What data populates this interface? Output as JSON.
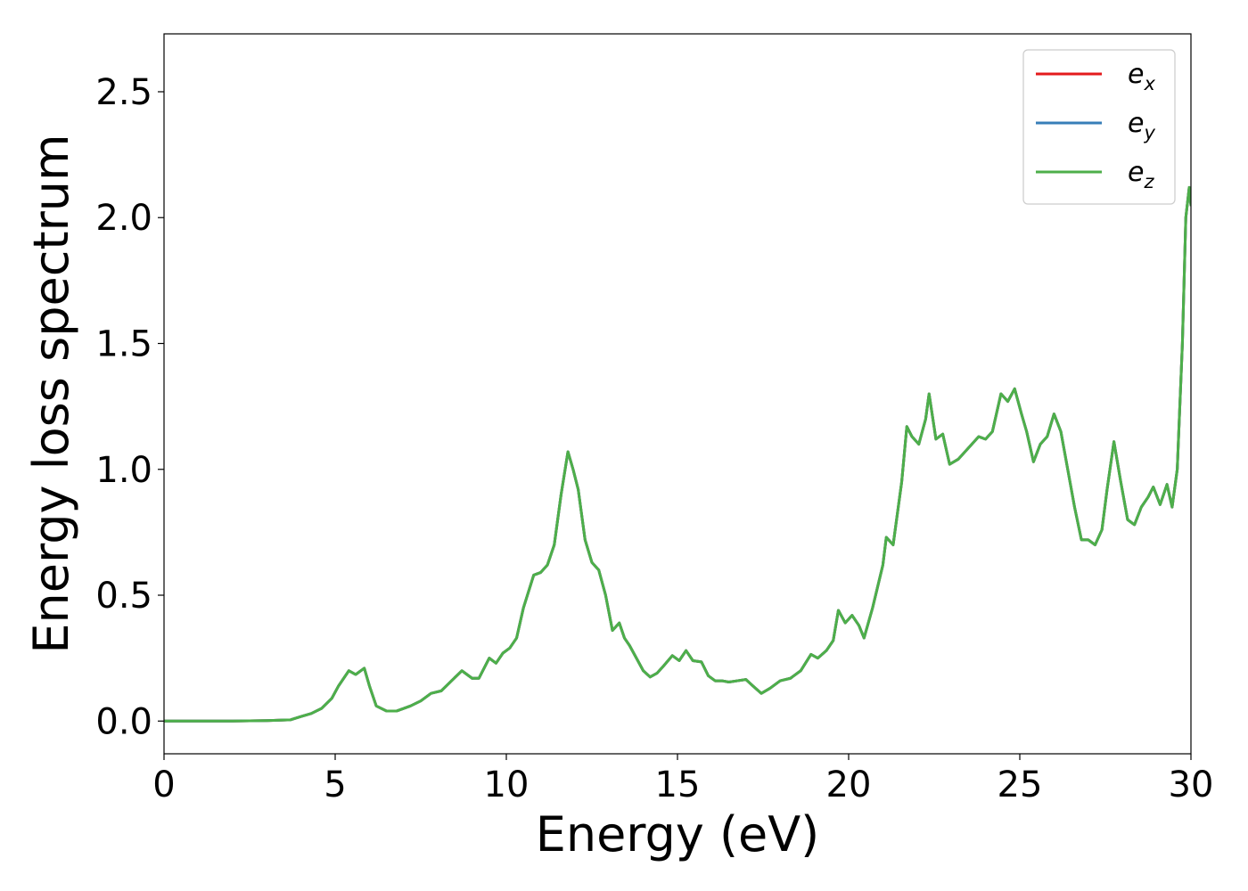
{
  "chart_data": {
    "type": "line",
    "title": "",
    "xlabel": "Energy (eV)",
    "ylabel": "Energy loss spectrum",
    "xlim": [
      0,
      30
    ],
    "ylim": [
      -0.13,
      2.73
    ],
    "x_ticks": [
      "0",
      "5",
      "10",
      "15",
      "20",
      "25",
      "30"
    ],
    "y_ticks": [
      "0.0",
      "0.5",
      "1.0",
      "1.5",
      "2.0",
      "2.5"
    ],
    "grid": false,
    "legend_position": "top-right",
    "x": [
      0,
      2,
      3,
      3.7,
      4.0,
      4.3,
      4.6,
      4.9,
      5.1,
      5.4,
      5.6,
      5.85,
      6.0,
      6.2,
      6.5,
      6.8,
      7.2,
      7.5,
      7.8,
      8.1,
      8.4,
      8.7,
      9.0,
      9.2,
      9.5,
      9.7,
      9.9,
      10.1,
      10.3,
      10.5,
      10.8,
      11.0,
      11.2,
      11.4,
      11.6,
      11.8,
      11.95,
      12.1,
      12.3,
      12.5,
      12.7,
      12.9,
      13.1,
      13.3,
      13.45,
      13.6,
      13.8,
      14.0,
      14.2,
      14.4,
      14.6,
      14.85,
      15.05,
      15.25,
      15.45,
      15.7,
      15.9,
      16.1,
      16.3,
      16.5,
      16.75,
      17.0,
      17.2,
      17.45,
      17.7,
      18.0,
      18.3,
      18.6,
      18.9,
      19.1,
      19.35,
      19.55,
      19.7,
      19.9,
      20.1,
      20.3,
      20.45,
      20.7,
      21.0,
      21.1,
      21.3,
      21.55,
      21.7,
      21.85,
      22.05,
      22.25,
      22.35,
      22.55,
      22.75,
      22.95,
      23.2,
      23.4,
      23.6,
      23.8,
      24.0,
      24.2,
      24.45,
      24.65,
      24.85,
      25.05,
      25.2,
      25.4,
      25.6,
      25.8,
      26.0,
      26.2,
      26.4,
      26.6,
      26.8,
      27.0,
      27.2,
      27.4,
      27.55,
      27.75,
      27.95,
      28.15,
      28.35,
      28.55,
      28.75,
      28.9,
      29.1,
      29.3,
      29.45,
      29.6,
      29.75,
      29.85,
      29.95,
      30.0
    ],
    "series": [
      {
        "name": "e_x",
        "color": "#e41a1c",
        "values": [
          0.0,
          0.0,
          0.002,
          0.005,
          0.018,
          0.03,
          0.05,
          0.09,
          0.14,
          0.2,
          0.185,
          0.21,
          0.14,
          0.06,
          0.04,
          0.04,
          0.06,
          0.08,
          0.11,
          0.12,
          0.16,
          0.2,
          0.17,
          0.17,
          0.25,
          0.23,
          0.27,
          0.29,
          0.33,
          0.45,
          0.58,
          0.59,
          0.62,
          0.7,
          0.9,
          1.07,
          1.0,
          0.92,
          0.72,
          0.63,
          0.6,
          0.5,
          0.36,
          0.39,
          0.33,
          0.3,
          0.25,
          0.2,
          0.175,
          0.19,
          0.22,
          0.26,
          0.24,
          0.28,
          0.24,
          0.235,
          0.18,
          0.16,
          0.16,
          0.155,
          0.16,
          0.165,
          0.14,
          0.11,
          0.13,
          0.16,
          0.17,
          0.2,
          0.265,
          0.25,
          0.28,
          0.32,
          0.44,
          0.39,
          0.42,
          0.38,
          0.33,
          0.45,
          0.62,
          0.73,
          0.7,
          0.95,
          1.17,
          1.13,
          1.1,
          1.2,
          1.3,
          1.12,
          1.14,
          1.02,
          1.04,
          1.07,
          1.1,
          1.13,
          1.12,
          1.15,
          1.3,
          1.27,
          1.32,
          1.22,
          1.15,
          1.03,
          1.1,
          1.13,
          1.22,
          1.15,
          1.0,
          0.85,
          0.72,
          0.72,
          0.7,
          0.76,
          0.92,
          1.11,
          0.95,
          0.8,
          0.78,
          0.85,
          0.89,
          0.93,
          0.86,
          0.94,
          0.85,
          1.0,
          1.5,
          2.0,
          2.12,
          2.05
        ]
      },
      {
        "name": "e_y",
        "color": "#377eb8",
        "values": [
          0.0,
          0.0,
          0.002,
          0.005,
          0.018,
          0.03,
          0.05,
          0.09,
          0.14,
          0.2,
          0.185,
          0.21,
          0.14,
          0.06,
          0.04,
          0.04,
          0.06,
          0.08,
          0.11,
          0.12,
          0.16,
          0.2,
          0.17,
          0.17,
          0.25,
          0.23,
          0.27,
          0.29,
          0.33,
          0.45,
          0.58,
          0.59,
          0.62,
          0.7,
          0.9,
          1.07,
          1.0,
          0.92,
          0.72,
          0.63,
          0.6,
          0.5,
          0.36,
          0.39,
          0.33,
          0.3,
          0.25,
          0.2,
          0.175,
          0.19,
          0.22,
          0.26,
          0.24,
          0.28,
          0.24,
          0.235,
          0.18,
          0.16,
          0.16,
          0.155,
          0.16,
          0.165,
          0.14,
          0.11,
          0.13,
          0.16,
          0.17,
          0.2,
          0.265,
          0.25,
          0.28,
          0.32,
          0.44,
          0.39,
          0.42,
          0.38,
          0.33,
          0.45,
          0.62,
          0.73,
          0.7,
          0.95,
          1.17,
          1.13,
          1.1,
          1.2,
          1.3,
          1.12,
          1.14,
          1.02,
          1.04,
          1.07,
          1.1,
          1.13,
          1.12,
          1.15,
          1.3,
          1.27,
          1.32,
          1.22,
          1.15,
          1.03,
          1.1,
          1.13,
          1.22,
          1.15,
          1.0,
          0.85,
          0.72,
          0.72,
          0.7,
          0.76,
          0.92,
          1.11,
          0.95,
          0.8,
          0.78,
          0.85,
          0.89,
          0.93,
          0.86,
          0.94,
          0.85,
          1.0,
          1.5,
          2.0,
          2.12,
          2.05
        ]
      },
      {
        "name": "e_z",
        "color": "#4daf4a",
        "values": [
          0.0,
          0.0,
          0.002,
          0.005,
          0.018,
          0.03,
          0.05,
          0.09,
          0.14,
          0.2,
          0.185,
          0.21,
          0.14,
          0.06,
          0.04,
          0.04,
          0.06,
          0.08,
          0.11,
          0.12,
          0.16,
          0.2,
          0.17,
          0.17,
          0.25,
          0.23,
          0.27,
          0.29,
          0.33,
          0.45,
          0.58,
          0.59,
          0.62,
          0.7,
          0.9,
          1.07,
          1.0,
          0.92,
          0.72,
          0.63,
          0.6,
          0.5,
          0.36,
          0.39,
          0.33,
          0.3,
          0.25,
          0.2,
          0.175,
          0.19,
          0.22,
          0.26,
          0.24,
          0.28,
          0.24,
          0.235,
          0.18,
          0.16,
          0.16,
          0.155,
          0.16,
          0.165,
          0.14,
          0.11,
          0.13,
          0.16,
          0.17,
          0.2,
          0.265,
          0.25,
          0.28,
          0.32,
          0.44,
          0.39,
          0.42,
          0.38,
          0.33,
          0.45,
          0.62,
          0.73,
          0.7,
          0.95,
          1.17,
          1.13,
          1.1,
          1.2,
          1.3,
          1.12,
          1.14,
          1.02,
          1.04,
          1.07,
          1.1,
          1.13,
          1.12,
          1.15,
          1.3,
          1.27,
          1.32,
          1.22,
          1.15,
          1.03,
          1.1,
          1.13,
          1.22,
          1.15,
          1.0,
          0.85,
          0.72,
          0.72,
          0.7,
          0.76,
          0.92,
          1.11,
          0.95,
          0.8,
          0.78,
          0.85,
          0.89,
          0.93,
          0.86,
          0.94,
          0.85,
          1.0,
          1.5,
          2.0,
          2.12,
          2.05
        ]
      }
    ],
    "legend": [
      {
        "base": "e",
        "sub": "x",
        "color": "#e41a1c"
      },
      {
        "base": "e",
        "sub": "y",
        "color": "#377eb8"
      },
      {
        "base": "e",
        "sub": "z",
        "color": "#4daf4a"
      }
    ]
  }
}
